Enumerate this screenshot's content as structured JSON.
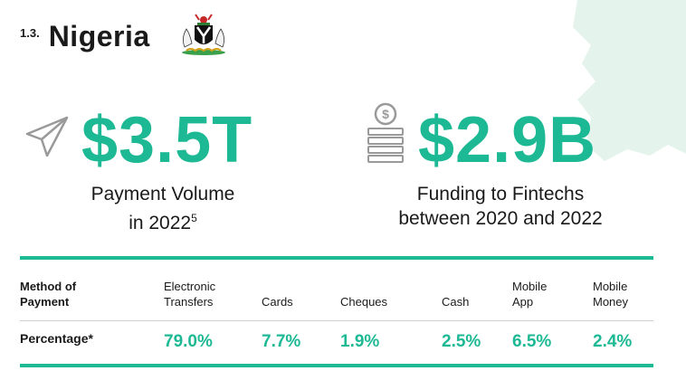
{
  "header": {
    "section_number": "1.3.",
    "country": "Nigeria",
    "emblem_icon": "nigeria-coat-of-arms-icon"
  },
  "stats": [
    {
      "icon": "paper-plane-icon",
      "value": "$3.5T",
      "label_line1": "Payment Volume",
      "label_line2": "in 2022",
      "footnote": "5"
    },
    {
      "icon": "coin-stack-icon",
      "value": "$2.9B",
      "label_line1": "Funding to Fintechs",
      "label_line2": "between 2020 and 2022"
    }
  ],
  "table": {
    "headers": [
      {
        "line1": "Method of",
        "line2": "Payment"
      },
      {
        "line1": "Electronic",
        "line2": "Transfers"
      },
      {
        "line1": "",
        "line2": "Cards"
      },
      {
        "line1": "",
        "line2": "Cheques"
      },
      {
        "line1": "",
        "line2": "Cash"
      },
      {
        "line1": "Mobile",
        "line2": "App"
      },
      {
        "line1": "Mobile",
        "line2": "Money"
      }
    ],
    "row_label": "Percentage*",
    "values": [
      "79.0%",
      "7.7%",
      "1.9%",
      "2.5%",
      "6.5%",
      "2.4%"
    ]
  },
  "colors": {
    "accent": "#1db994",
    "map": "#e4f3ec"
  }
}
